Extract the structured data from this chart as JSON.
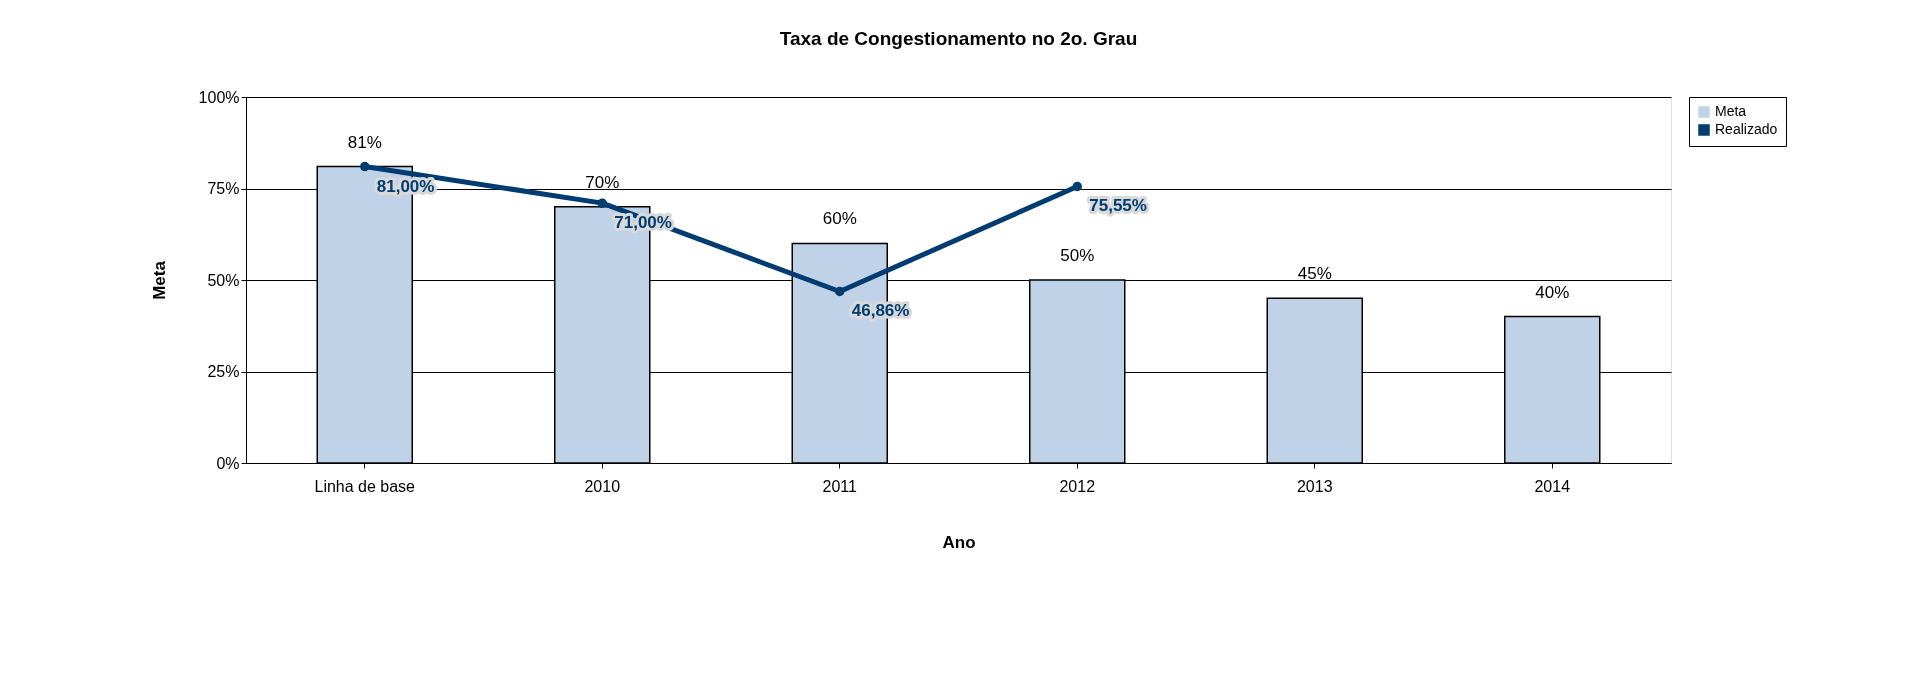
{
  "chart_data": {
    "type": "bar",
    "title": "Taxa de Congestionamento no 2o. Grau",
    "xlabel": "Ano",
    "ylabel": "Meta",
    "categories": [
      "Linha de base",
      "2010",
      "2011",
      "2012",
      "2013",
      "2014"
    ],
    "series": [
      {
        "name": "Meta",
        "color": "#c0d2e8",
        "values": [
          81,
          70,
          60,
          50,
          45,
          40
        ],
        "value_labels": [
          "81%",
          "70%",
          "60%",
          "50%",
          "45%",
          "40%"
        ]
      },
      {
        "name": "Realizado",
        "type": "line",
        "color": "#003c71",
        "values": [
          81,
          71,
          46.86,
          75.55,
          null,
          null
        ],
        "value_labels": [
          "81,00%",
          "71,00%",
          "46,86%",
          "75,55%",
          null,
          null
        ]
      }
    ],
    "ylim": [
      0,
      100
    ],
    "yticks": [
      {
        "value": 0,
        "label": "0%"
      },
      {
        "value": 25,
        "label": "25%"
      },
      {
        "value": 50,
        "label": "50%"
      },
      {
        "value": 75,
        "label": "75%"
      },
      {
        "value": 100,
        "label": "100%"
      }
    ],
    "grid": "y",
    "legend": "right",
    "marker": "circle"
  }
}
